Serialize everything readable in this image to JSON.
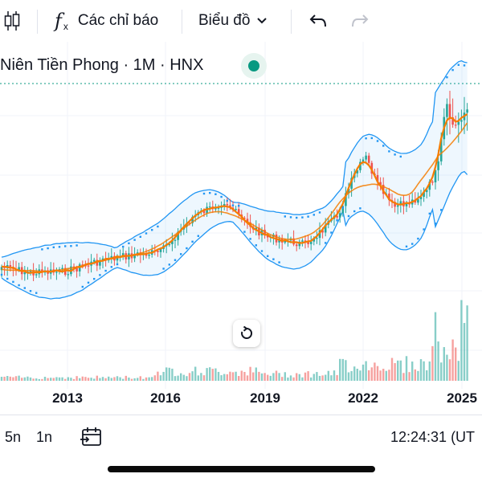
{
  "toolbar": {
    "indicators_label": "Các chỉ báo",
    "chart_type_label": "Biểu đồ"
  },
  "legend": {
    "title": "Niên Tiền Phong · 1M · HNX"
  },
  "chart_data": {
    "type": "candlestick",
    "title": "",
    "x_ticks": [
      "2013",
      "2016",
      "2019",
      "2022",
      "2025"
    ],
    "overlays": [
      "bollinger-bands",
      "moving-averages",
      "parabolic-sar",
      "volume"
    ]
  },
  "bottom_bar": {
    "range_5y": "5n",
    "range_1y": "1n",
    "time": "12:24:31 (UT"
  },
  "colors": {
    "up": "#26a69a",
    "down": "#ef5350",
    "bollinger": "#2196f3",
    "ma": "#f57c00",
    "accent": "#089981"
  }
}
